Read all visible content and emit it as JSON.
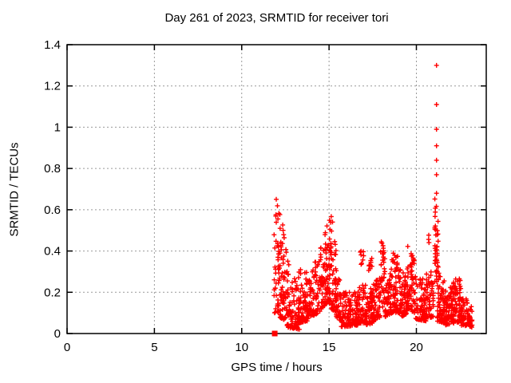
{
  "chart_data": {
    "type": "scatter",
    "title": "Day 261 of 2023, SRMTID for receiver tori",
    "xlabel": "GPS time / hours",
    "ylabel": "SRMTID / TECUs",
    "xlim": [
      0,
      24
    ],
    "ylim": [
      0,
      1.4
    ],
    "xticks": [
      0,
      5,
      10,
      15,
      20
    ],
    "xtick_labels": [
      "0",
      "5",
      "10",
      "15",
      "20"
    ],
    "yticks": [
      0,
      0.2,
      0.4,
      0.6,
      0.8,
      1,
      1.2,
      1.4
    ],
    "ytick_labels": [
      "0",
      "0.2",
      "0.4",
      "0.6",
      "0.8",
      "1",
      "1.2",
      "1.4"
    ],
    "grid": true,
    "legend": "none",
    "marker": "plus",
    "colors": {
      "points": "#ff0000",
      "grid": "#999999",
      "axis": "#000000",
      "text": "#000000",
      "background": "#ffffff"
    },
    "start_marker": {
      "shape": "filled-square",
      "x": 11.89,
      "y": 0.0
    },
    "outlier_spike": {
      "x": 21.15,
      "values": [
        1.3,
        1.11,
        0.99,
        0.91,
        0.84,
        0.77,
        0.68
      ]
    },
    "data_span_hours": [
      11.85,
      23.2
    ],
    "seed": 261,
    "segment_format": [
      "x_start",
      "x_end",
      "y_low_start",
      "y_high_start",
      "y_low_end",
      "y_high_end",
      "n_points",
      "low_bias"
    ],
    "segments": [
      [
        11.85,
        12.15,
        0.1,
        0.72,
        0.1,
        0.62,
        45,
        1.3
      ],
      [
        12.15,
        12.55,
        0.08,
        0.62,
        0.06,
        0.45,
        65,
        1.9
      ],
      [
        12.5,
        13.3,
        0.03,
        0.4,
        0.02,
        0.22,
        100,
        1.8
      ],
      [
        13.25,
        13.75,
        0.05,
        0.34,
        0.06,
        0.3,
        75,
        2.2
      ],
      [
        13.7,
        14.4,
        0.07,
        0.28,
        0.1,
        0.38,
        90,
        2.0
      ],
      [
        14.4,
        14.85,
        0.1,
        0.42,
        0.14,
        0.52,
        60,
        1.9
      ],
      [
        14.85,
        15.08,
        0.14,
        0.52,
        0.14,
        0.63,
        45,
        1.6
      ],
      [
        15.08,
        15.4,
        0.12,
        0.63,
        0.1,
        0.4,
        50,
        1.7
      ],
      [
        15.4,
        15.7,
        0.08,
        0.35,
        0.06,
        0.22,
        45,
        1.8
      ],
      [
        15.7,
        16.65,
        0.03,
        0.2,
        0.04,
        0.2,
        120,
        1.5
      ],
      [
        16.65,
        17.15,
        0.05,
        0.26,
        0.05,
        0.24,
        65,
        1.7
      ],
      [
        16.78,
        16.98,
        0.32,
        0.4,
        0.32,
        0.4,
        8,
        1.0
      ],
      [
        17.1,
        17.55,
        0.04,
        0.22,
        0.05,
        0.24,
        60,
        1.6
      ],
      [
        17.25,
        17.5,
        0.3,
        0.38,
        0.32,
        0.38,
        9,
        1.0
      ],
      [
        17.55,
        17.95,
        0.06,
        0.25,
        0.08,
        0.28,
        55,
        1.7
      ],
      [
        17.95,
        18.2,
        0.12,
        0.47,
        0.12,
        0.4,
        35,
        1.3
      ],
      [
        18.2,
        18.6,
        0.08,
        0.3,
        0.1,
        0.32,
        65,
        1.9
      ],
      [
        18.6,
        19.15,
        0.1,
        0.4,
        0.1,
        0.36,
        85,
        2.0
      ],
      [
        19.15,
        19.5,
        0.08,
        0.3,
        0.1,
        0.32,
        60,
        1.8
      ],
      [
        19.5,
        19.9,
        0.12,
        0.44,
        0.1,
        0.38,
        55,
        1.8
      ],
      [
        19.9,
        20.55,
        0.07,
        0.28,
        0.06,
        0.26,
        85,
        1.7
      ],
      [
        20.55,
        20.98,
        0.07,
        0.3,
        0.08,
        0.3,
        55,
        1.8
      ],
      [
        20.68,
        20.78,
        0.44,
        0.5,
        0.44,
        0.5,
        3,
        1.0
      ],
      [
        21.05,
        21.25,
        0.25,
        0.66,
        0.25,
        0.6,
        40,
        1.1
      ],
      [
        21.2,
        21.65,
        0.06,
        0.3,
        0.05,
        0.26,
        70,
        1.9
      ],
      [
        21.6,
        22.15,
        0.04,
        0.22,
        0.05,
        0.24,
        80,
        1.7
      ],
      [
        22.1,
        22.6,
        0.06,
        0.3,
        0.05,
        0.26,
        70,
        1.9
      ],
      [
        22.55,
        23.2,
        0.04,
        0.2,
        0.03,
        0.13,
        70,
        1.5
      ]
    ]
  }
}
